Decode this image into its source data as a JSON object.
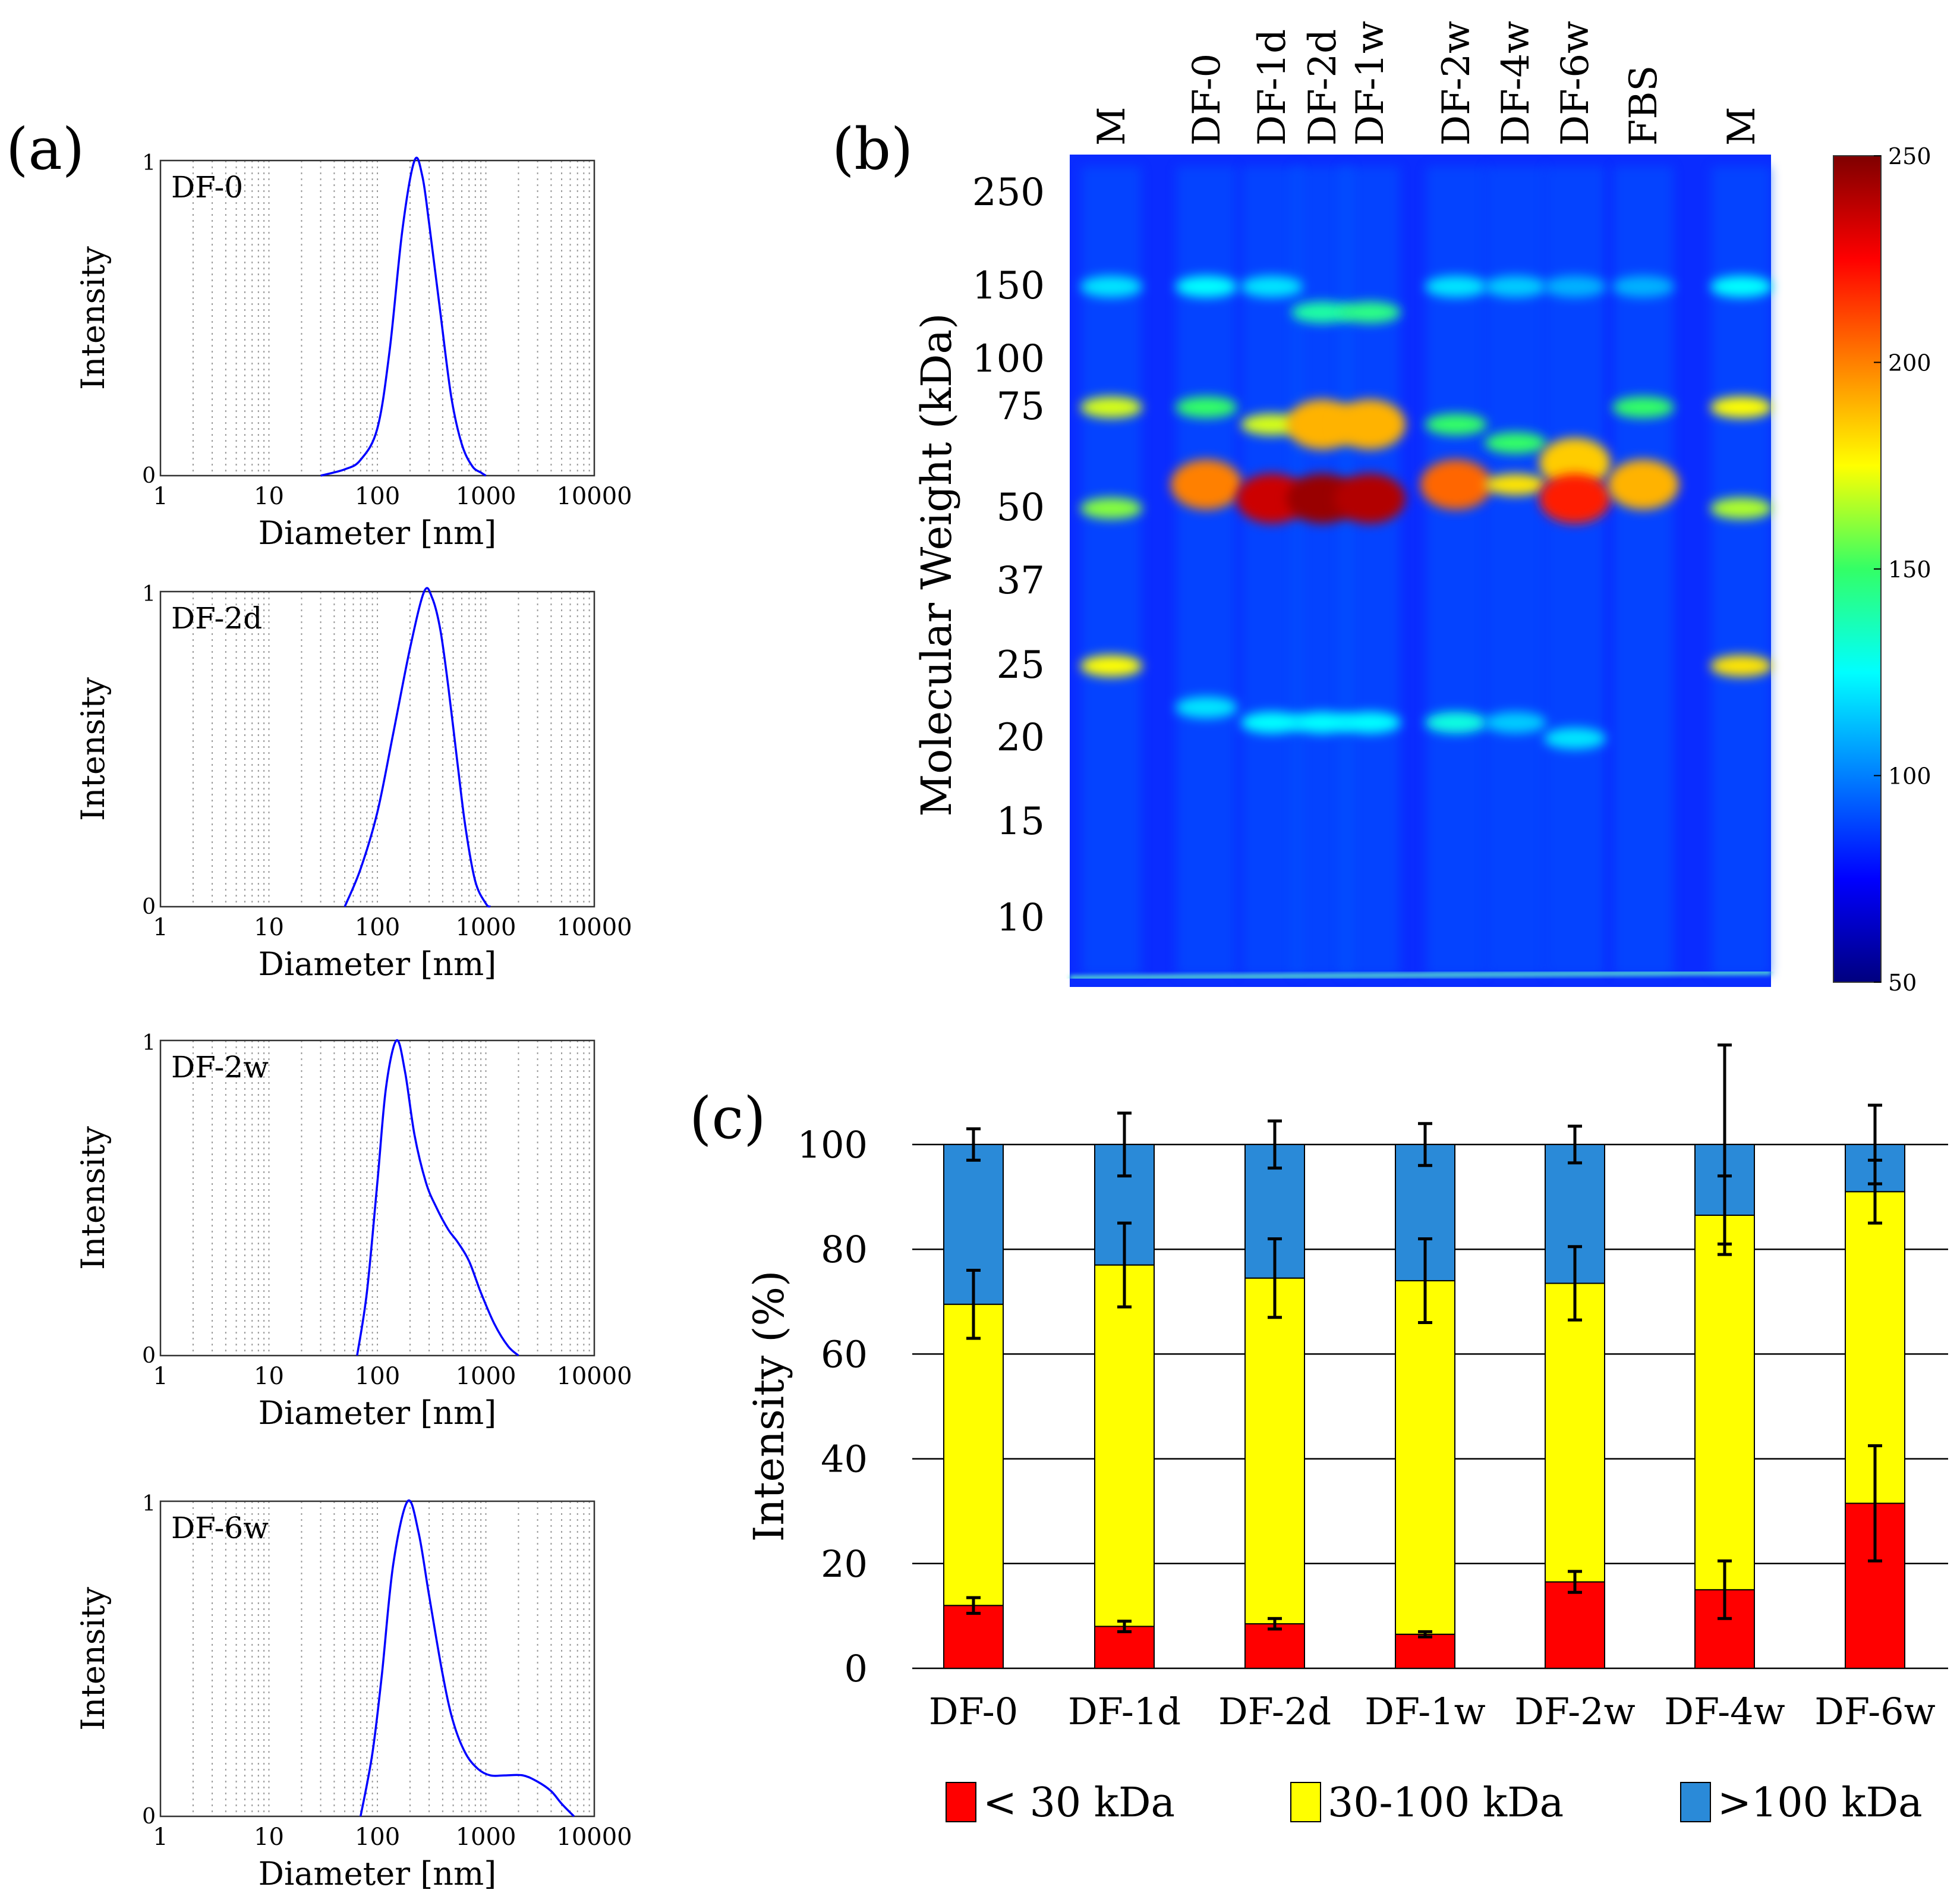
{
  "panels": {
    "a": "(a)",
    "b": "(b)",
    "c": "(c)"
  },
  "chart_data": [
    {
      "id": "dls",
      "type": "line",
      "xscale": "log",
      "xlim": [
        1,
        10000
      ],
      "ylim": [
        0,
        1
      ],
      "xticks": [
        "1",
        "10",
        "100",
        "1000",
        "10000"
      ],
      "yticks": [
        "0",
        "1"
      ],
      "xlabel": "Diameter [nm]",
      "ylabel": "Intensity",
      "color": "#0000ff",
      "series": [
        {
          "name": "DF-0",
          "x": [
            30,
            50,
            70,
            100,
            130,
            170,
            220,
            260,
            300,
            380,
            480,
            600,
            750,
            900,
            1000
          ],
          "y": [
            0,
            0.02,
            0.05,
            0.15,
            0.4,
            0.78,
            1,
            0.95,
            0.8,
            0.52,
            0.25,
            0.1,
            0.03,
            0.01,
            0
          ]
        },
        {
          "name": "DF-2d",
          "x": [
            50,
            70,
            100,
            140,
            200,
            270,
            320,
            380,
            450,
            550,
            650,
            800,
            1000,
            1100
          ],
          "y": [
            0,
            0.12,
            0.3,
            0.55,
            0.82,
            1,
            0.98,
            0.88,
            0.7,
            0.45,
            0.25,
            0.08,
            0.01,
            0
          ]
        },
        {
          "name": "DF-2w",
          "x": [
            65,
            80,
            100,
            120,
            150,
            180,
            220,
            280,
            350,
            450,
            550,
            700,
            900,
            1200,
            1600,
            2000
          ],
          "y": [
            0,
            0.2,
            0.55,
            0.85,
            1,
            0.9,
            0.7,
            0.55,
            0.47,
            0.4,
            0.36,
            0.3,
            0.2,
            0.1,
            0.03,
            0
          ]
        },
        {
          "name": "DF-6w",
          "x": [
            70,
            90,
            110,
            140,
            190,
            240,
            300,
            400,
            500,
            650,
            850,
            1100,
            1500,
            2200,
            3000,
            4000,
            5000,
            6500
          ],
          "y": [
            0,
            0.2,
            0.45,
            0.8,
            1,
            0.9,
            0.7,
            0.45,
            0.3,
            0.2,
            0.15,
            0.13,
            0.13,
            0.13,
            0.11,
            0.08,
            0.04,
            0
          ]
        }
      ]
    },
    {
      "id": "gel",
      "type": "heatmap",
      "ylabel": "Molecular Weight (kDa)",
      "lanes": [
        "M",
        "DF-0",
        "DF-1d",
        "DF-2d",
        "DF-1w",
        "DF-2w",
        "DF-4w",
        "DF-6w",
        "FBS",
        "M"
      ],
      "mw_ticks": [
        "250",
        "150",
        "100",
        "75",
        "50",
        "37",
        "25",
        "20",
        "15",
        "10"
      ],
      "colorbar": {
        "range": [
          50,
          250
        ],
        "ticks": [
          "250",
          "200",
          "150",
          "100",
          "50"
        ]
      },
      "bands": [
        {
          "lane": 0,
          "mw": 150,
          "intensity": 120
        },
        {
          "lane": 0,
          "mw": 75,
          "intensity": 170
        },
        {
          "lane": 0,
          "mw": 50,
          "intensity": 160
        },
        {
          "lane": 0,
          "mw": 25,
          "intensity": 175
        },
        {
          "lane": 1,
          "mw": 150,
          "intensity": 125
        },
        {
          "lane": 1,
          "mw": 75,
          "intensity": 150
        },
        {
          "lane": 1,
          "mw": 55,
          "intensity": 200
        },
        {
          "lane": 1,
          "mw": 22,
          "intensity": 120
        },
        {
          "lane": 2,
          "mw": 150,
          "intensity": 120
        },
        {
          "lane": 2,
          "mw": 70,
          "intensity": 170
        },
        {
          "lane": 2,
          "mw": 52,
          "intensity": 235
        },
        {
          "lane": 2,
          "mw": 21,
          "intensity": 125
        },
        {
          "lane": 3,
          "mw": 130,
          "intensity": 140
        },
        {
          "lane": 3,
          "mw": 70,
          "intensity": 190
        },
        {
          "lane": 3,
          "mw": 52,
          "intensity": 245
        },
        {
          "lane": 3,
          "mw": 21,
          "intensity": 125
        },
        {
          "lane": 4,
          "mw": 130,
          "intensity": 145
        },
        {
          "lane": 4,
          "mw": 70,
          "intensity": 190
        },
        {
          "lane": 4,
          "mw": 52,
          "intensity": 240
        },
        {
          "lane": 4,
          "mw": 21,
          "intensity": 125
        },
        {
          "lane": 5,
          "mw": 150,
          "intensity": 120
        },
        {
          "lane": 5,
          "mw": 70,
          "intensity": 150
        },
        {
          "lane": 5,
          "mw": 55,
          "intensity": 205
        },
        {
          "lane": 5,
          "mw": 21,
          "intensity": 130
        },
        {
          "lane": 6,
          "mw": 150,
          "intensity": 115
        },
        {
          "lane": 6,
          "mw": 65,
          "intensity": 150
        },
        {
          "lane": 6,
          "mw": 55,
          "intensity": 180
        },
        {
          "lane": 6,
          "mw": 21,
          "intensity": 115
        },
        {
          "lane": 7,
          "mw": 150,
          "intensity": 110
        },
        {
          "lane": 7,
          "mw": 60,
          "intensity": 185
        },
        {
          "lane": 7,
          "mw": 52,
          "intensity": 220
        },
        {
          "lane": 7,
          "mw": 20,
          "intensity": 120
        },
        {
          "lane": 8,
          "mw": 150,
          "intensity": 110
        },
        {
          "lane": 8,
          "mw": 75,
          "intensity": 150
        },
        {
          "lane": 8,
          "mw": 55,
          "intensity": 190
        },
        {
          "lane": 9,
          "mw": 150,
          "intensity": 125
        },
        {
          "lane": 9,
          "mw": 75,
          "intensity": 175
        },
        {
          "lane": 9,
          "mw": 50,
          "intensity": 165
        },
        {
          "lane": 9,
          "mw": 25,
          "intensity": 180
        }
      ]
    },
    {
      "id": "stacked",
      "type": "bar",
      "stacked": true,
      "categories": [
        "DF-0",
        "DF-1d",
        "DF-2d",
        "DF-1w",
        "DF-2w",
        "DF-4w",
        "DF-6w"
      ],
      "ylabel": "Intensity (%)",
      "ylim": [
        0,
        100
      ],
      "yticks": [
        "0",
        "20",
        "40",
        "60",
        "80",
        "100"
      ],
      "series": [
        {
          "name": "< 30 kDa",
          "color": "#ff0000",
          "values": [
            12,
            8,
            8.5,
            6.5,
            16.5,
            15,
            31.5
          ],
          "err": [
            1.5,
            1,
            1,
            0.5,
            2,
            5.5,
            11
          ]
        },
        {
          "name": "30-100 kDa",
          "color": "#ffff00",
          "values": [
            57.5,
            69,
            66,
            67.5,
            57,
            71.5,
            59.5
          ],
          "err": [
            6.5,
            8,
            7.5,
            8,
            7,
            7.5,
            6
          ]
        },
        {
          "name": ">100 kDa",
          "color": "#2a8ad8",
          "values": [
            30.5,
            23,
            25.5,
            26,
            26.5,
            13.5,
            9
          ],
          "err": [
            3,
            6,
            4.5,
            4,
            3.5,
            19,
            7.5
          ]
        }
      ]
    }
  ]
}
